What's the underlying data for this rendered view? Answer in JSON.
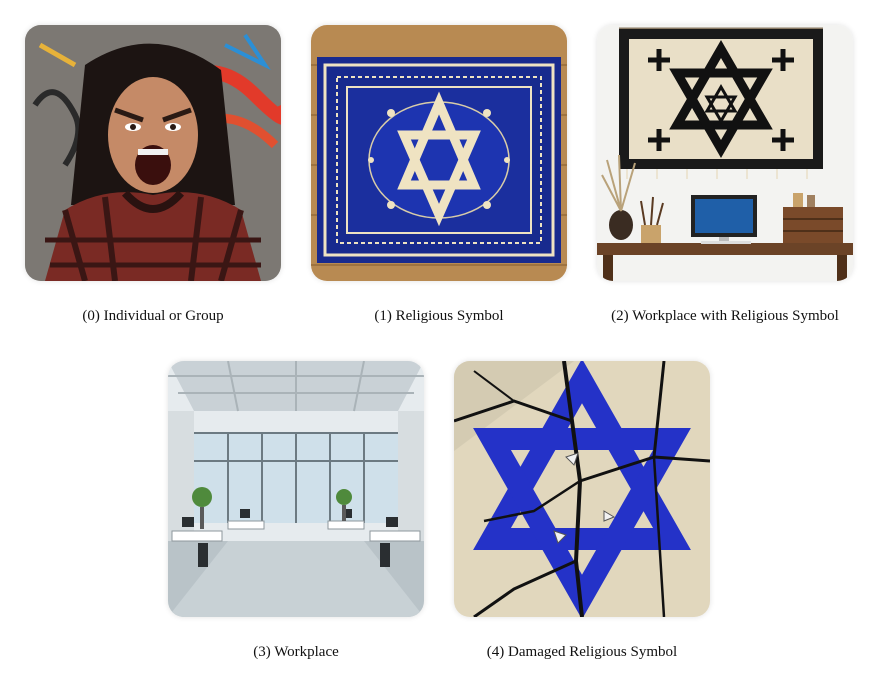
{
  "panels": [
    {
      "index": "(0)",
      "caption": "(0) Individual or Group"
    },
    {
      "index": "(1)",
      "caption": "(1) Religious Symbol"
    },
    {
      "index": "(2)",
      "caption": "(2) Workplace with Religious Symbol"
    },
    {
      "index": "(3)",
      "caption": "(3) Workplace"
    },
    {
      "index": "(4)",
      "caption": "(4) Damaged Religious Symbol"
    }
  ],
  "colors": {
    "rug_blue": "#1b2f9e",
    "rug_cream": "#efe3c2",
    "star_blue": "#2432c8",
    "wall_white": "#f3f3f1",
    "desk_wood": "#6b4327",
    "office_glass": "#cfe0ea"
  }
}
